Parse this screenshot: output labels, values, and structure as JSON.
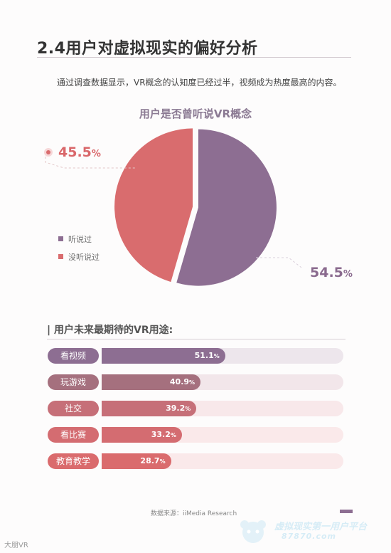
{
  "title": "2.4用户对虚拟现实的偏好分析",
  "intro": "通过调查数据显示，VR概念的认知度已经过半，视频成为热度最高的内容。",
  "chart_data": [
    {
      "type": "pie",
      "title": "用户是否曾听说VR概念",
      "slices": [
        {
          "name": "听说过",
          "value": 54.5,
          "color": "#8d6e92",
          "label_num": "54.5",
          "label_unit": "%"
        },
        {
          "name": "没听说过",
          "value": 45.5,
          "color": "#d96c6e",
          "label_num": "45.5",
          "label_unit": "%"
        }
      ],
      "legend": "left"
    },
    {
      "type": "bar",
      "title": "| 用户未来最期待的VR用途:",
      "orientation": "horizontal",
      "xlim": [
        0,
        100
      ],
      "categories": [
        "看视频",
        "玩游戏",
        "社交",
        "看比赛",
        "教育教学"
      ],
      "values": [
        51.1,
        40.9,
        39.2,
        33.2,
        28.7
      ],
      "value_labels": [
        "51.1",
        "40.9",
        "39.2",
        "33.2",
        "28.7"
      ],
      "unit": "%",
      "colors": [
        "#8d6e92",
        "#a5707e",
        "#c66f78",
        "#d46c71",
        "#da6b6d"
      ],
      "track_colors": [
        "#ede6ec",
        "#f2e6ea",
        "#f8e8ea",
        "#fae9ea",
        "#fae9ea"
      ]
    }
  ],
  "source": "数据来源：iiMedia Research",
  "watermarks": {
    "left": "大朋VR",
    "right_line1": "虚拟现实第一用户平台",
    "right_line2": "87870.com"
  }
}
